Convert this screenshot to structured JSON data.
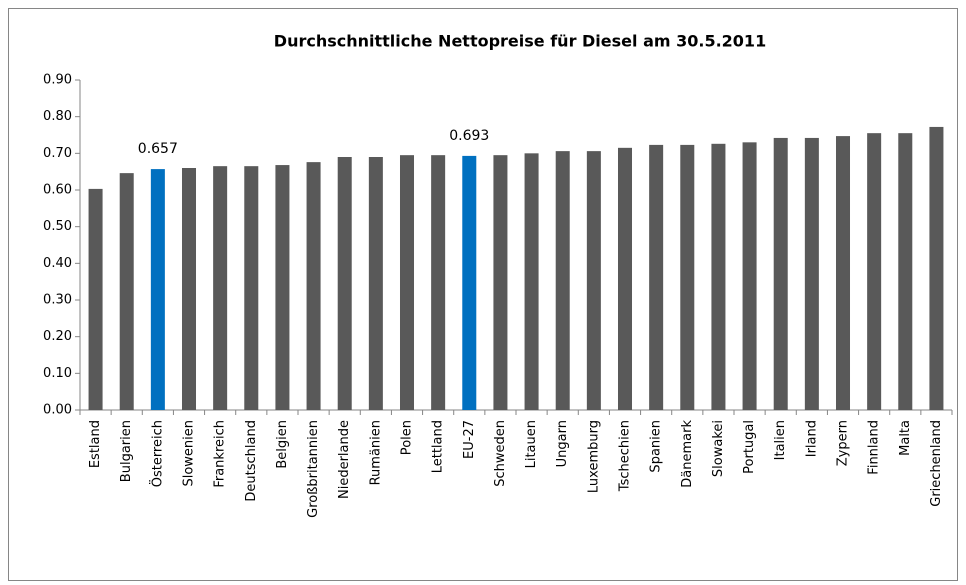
{
  "chart_data": {
    "type": "bar",
    "title": "Durchschnittliche Nettopreise für Diesel am 30.5.2011",
    "categories": [
      "Estland",
      "Bulgarien",
      "Österreich",
      "Slowenien",
      "Frankreich",
      "Deutschland",
      "Belgien",
      "Großbritannien",
      "Niederlande",
      "Rumänien",
      "Polen",
      "Lettland",
      "EU-27",
      "Schweden",
      "Litauen",
      "Ungarn",
      "Luxemburg",
      "Tschechien",
      "Spanien",
      "Dänemark",
      "Slowakei",
      "Portugal",
      "Italien",
      "Irland",
      "Zypern",
      "Finnland",
      "Malta",
      "Griechenland"
    ],
    "values": [
      0.603,
      0.646,
      0.657,
      0.66,
      0.665,
      0.665,
      0.668,
      0.676,
      0.69,
      0.69,
      0.695,
      0.695,
      0.693,
      0.695,
      0.7,
      0.706,
      0.706,
      0.715,
      0.723,
      0.723,
      0.726,
      0.73,
      0.742,
      0.742,
      0.747,
      0.755,
      0.755,
      0.772
    ],
    "value_labels": [
      null,
      null,
      "0.657",
      null,
      null,
      null,
      null,
      null,
      null,
      null,
      null,
      null,
      "0.693",
      null,
      null,
      null,
      null,
      null,
      null,
      null,
      null,
      null,
      null,
      null,
      null,
      null,
      null,
      null
    ],
    "colors": [
      "#595959",
      "#595959",
      "#0070c0",
      "#595959",
      "#595959",
      "#595959",
      "#595959",
      "#595959",
      "#595959",
      "#595959",
      "#595959",
      "#595959",
      "#0070c0",
      "#595959",
      "#595959",
      "#595959",
      "#595959",
      "#595959",
      "#595959",
      "#595959",
      "#595959",
      "#595959",
      "#595959",
      "#595959",
      "#595959",
      "#595959",
      "#595959",
      "#595959"
    ],
    "ylim": [
      0,
      0.9
    ],
    "yticks": [
      {
        "value": 0,
        "label": "0.00"
      },
      {
        "value": 0.1,
        "label": "0.10"
      },
      {
        "value": 0.2,
        "label": "0.20"
      },
      {
        "value": 0.3,
        "label": "0.30"
      },
      {
        "value": 0.4,
        "label": "0.40"
      },
      {
        "value": 0.5,
        "label": "0.50"
      },
      {
        "value": 0.6,
        "label": "0.60"
      },
      {
        "value": 0.7,
        "label": "0.70"
      },
      {
        "value": 0.8,
        "label": "0.80"
      },
      {
        "value": 0.9,
        "label": "0.90"
      }
    ],
    "grid": false
  }
}
